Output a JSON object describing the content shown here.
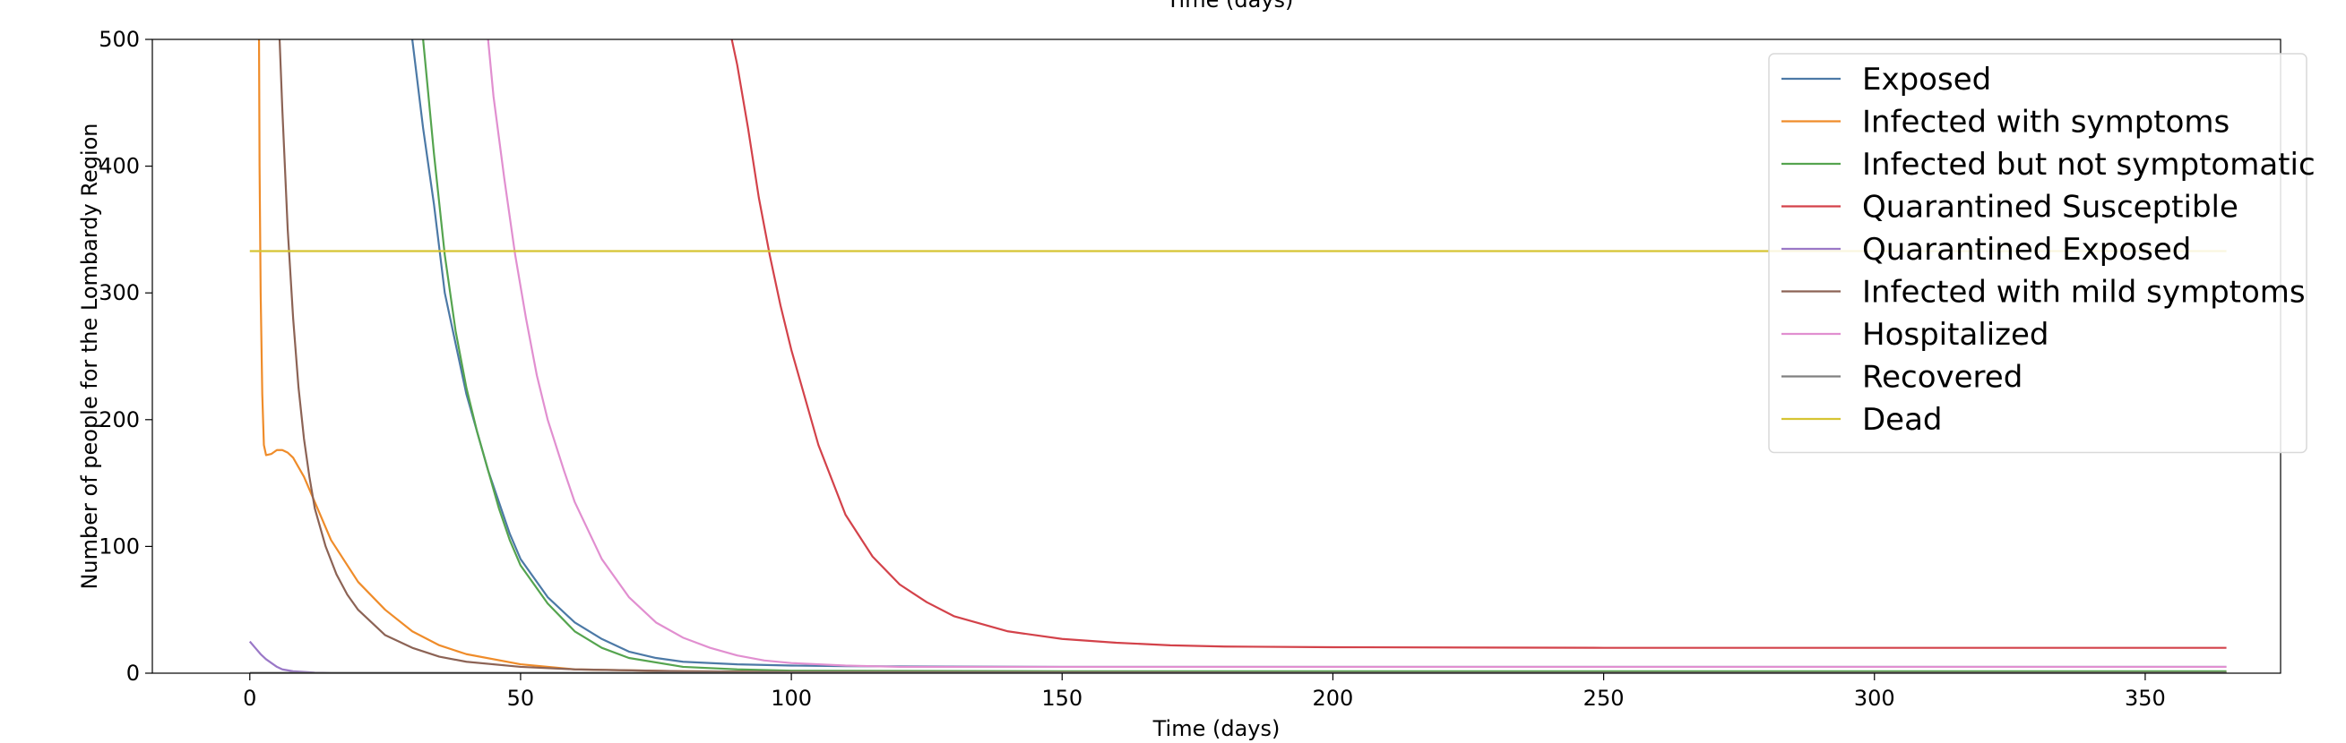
{
  "chart_data": {
    "type": "line",
    "xlabel": "Time (days)",
    "top_clipped_label": "Time (days)",
    "ylabel": "Number of people for the Lombardy Region",
    "xlim": [
      -18,
      375
    ],
    "ylim": [
      0,
      500
    ],
    "x_ticks": [
      0,
      50,
      100,
      150,
      200,
      250,
      300,
      350
    ],
    "y_ticks": [
      0,
      100,
      200,
      300,
      400,
      500
    ],
    "grid": false,
    "legend_placement": "top-right",
    "series": [
      {
        "name": "Exposed",
        "color": "#4c79a6",
        "points": [
          [
            30,
            500
          ],
          [
            32,
            430
          ],
          [
            34,
            370
          ],
          [
            36,
            300
          ],
          [
            38,
            260
          ],
          [
            40,
            220
          ],
          [
            42,
            190
          ],
          [
            44,
            160
          ],
          [
            46,
            135
          ],
          [
            48,
            110
          ],
          [
            50,
            90
          ],
          [
            55,
            60
          ],
          [
            60,
            40
          ],
          [
            65,
            27
          ],
          [
            70,
            17
          ],
          [
            75,
            12
          ],
          [
            80,
            9
          ],
          [
            90,
            7
          ],
          [
            100,
            6
          ],
          [
            110,
            5.5
          ],
          [
            150,
            5
          ],
          [
            200,
            5
          ],
          [
            250,
            5
          ],
          [
            300,
            5
          ],
          [
            365,
            5
          ]
        ]
      },
      {
        "name": "Infected with symptoms",
        "color": "#ef8c2a",
        "points": [
          [
            1.7,
            500
          ],
          [
            1.8,
            400
          ],
          [
            2,
            300
          ],
          [
            2.3,
            220
          ],
          [
            2.6,
            180
          ],
          [
            3,
            172
          ],
          [
            4,
            173
          ],
          [
            5,
            176
          ],
          [
            6,
            176
          ],
          [
            7,
            174
          ],
          [
            8,
            170
          ],
          [
            10,
            155
          ],
          [
            12,
            135
          ],
          [
            15,
            105
          ],
          [
            20,
            72
          ],
          [
            25,
            50
          ],
          [
            30,
            33
          ],
          [
            35,
            22
          ],
          [
            40,
            15
          ],
          [
            50,
            7
          ],
          [
            60,
            3
          ],
          [
            80,
            1.5
          ],
          [
            100,
            1
          ],
          [
            200,
            1
          ],
          [
            365,
            1
          ]
        ]
      },
      {
        "name": "Infected but not symptomatic",
        "color": "#55a44f",
        "points": [
          [
            32,
            500
          ],
          [
            34,
            410
          ],
          [
            36,
            330
          ],
          [
            38,
            270
          ],
          [
            40,
            225
          ],
          [
            42,
            190
          ],
          [
            44,
            160
          ],
          [
            46,
            130
          ],
          [
            48,
            105
          ],
          [
            50,
            85
          ],
          [
            55,
            55
          ],
          [
            60,
            33
          ],
          [
            65,
            20
          ],
          [
            70,
            12
          ],
          [
            80,
            5
          ],
          [
            90,
            3
          ],
          [
            100,
            2
          ],
          [
            150,
            1.5
          ],
          [
            200,
            1.5
          ],
          [
            365,
            1.5
          ]
        ]
      },
      {
        "name": "Quarantined Susceptible",
        "color": "#d3424a",
        "points": [
          [
            89,
            500
          ],
          [
            90,
            480
          ],
          [
            92,
            430
          ],
          [
            94,
            375
          ],
          [
            96,
            330
          ],
          [
            98,
            290
          ],
          [
            100,
            255
          ],
          [
            105,
            180
          ],
          [
            110,
            125
          ],
          [
            115,
            92
          ],
          [
            120,
            70
          ],
          [
            125,
            56
          ],
          [
            130,
            45
          ],
          [
            140,
            33
          ],
          [
            150,
            27
          ],
          [
            160,
            24
          ],
          [
            170,
            22
          ],
          [
            180,
            21
          ],
          [
            200,
            20.5
          ],
          [
            250,
            20
          ],
          [
            300,
            20
          ],
          [
            365,
            20
          ]
        ]
      },
      {
        "name": "Quarantined Exposed",
        "color": "#9a78c7",
        "points": [
          [
            0,
            25
          ],
          [
            1,
            20
          ],
          [
            2,
            15
          ],
          [
            3,
            11
          ],
          [
            4,
            8
          ],
          [
            5,
            5
          ],
          [
            6,
            3
          ],
          [
            8,
            1.5
          ],
          [
            10,
            1
          ],
          [
            12,
            0.5
          ],
          [
            15,
            0.3
          ],
          [
            30,
            0.2
          ],
          [
            365,
            0.2
          ]
        ]
      },
      {
        "name": "Infected with mild symptoms",
        "color": "#8c6355",
        "points": [
          [
            5.5,
            500
          ],
          [
            6,
            445
          ],
          [
            7,
            350
          ],
          [
            8,
            280
          ],
          [
            9,
            225
          ],
          [
            10,
            185
          ],
          [
            11,
            155
          ],
          [
            12,
            130
          ],
          [
            14,
            100
          ],
          [
            16,
            78
          ],
          [
            18,
            62
          ],
          [
            20,
            50
          ],
          [
            25,
            30
          ],
          [
            30,
            20
          ],
          [
            35,
            13
          ],
          [
            40,
            9
          ],
          [
            50,
            5
          ],
          [
            60,
            3
          ],
          [
            80,
            1.5
          ],
          [
            100,
            1
          ],
          [
            200,
            0.5
          ],
          [
            365,
            0.5
          ]
        ]
      },
      {
        "name": "Hospitalized",
        "color": "#e18fd0",
        "points": [
          [
            44,
            500
          ],
          [
            45,
            455
          ],
          [
            47,
            390
          ],
          [
            49,
            330
          ],
          [
            51,
            280
          ],
          [
            53,
            235
          ],
          [
            55,
            200
          ],
          [
            58,
            160
          ],
          [
            60,
            135
          ],
          [
            65,
            90
          ],
          [
            70,
            60
          ],
          [
            75,
            40
          ],
          [
            80,
            28
          ],
          [
            85,
            20
          ],
          [
            90,
            14
          ],
          [
            95,
            10
          ],
          [
            100,
            8
          ],
          [
            110,
            6
          ],
          [
            120,
            5
          ],
          [
            150,
            5
          ],
          [
            200,
            5
          ],
          [
            250,
            5
          ],
          [
            300,
            5
          ],
          [
            365,
            5
          ]
        ]
      },
      {
        "name": "Recovered",
        "color": "#808080",
        "points": [
          [
            0,
            0.3
          ],
          [
            365,
            0.3
          ]
        ]
      },
      {
        "name": "Dead",
        "color": "#d6c433",
        "points": [
          [
            0,
            333
          ],
          [
            365,
            333
          ]
        ]
      }
    ]
  }
}
